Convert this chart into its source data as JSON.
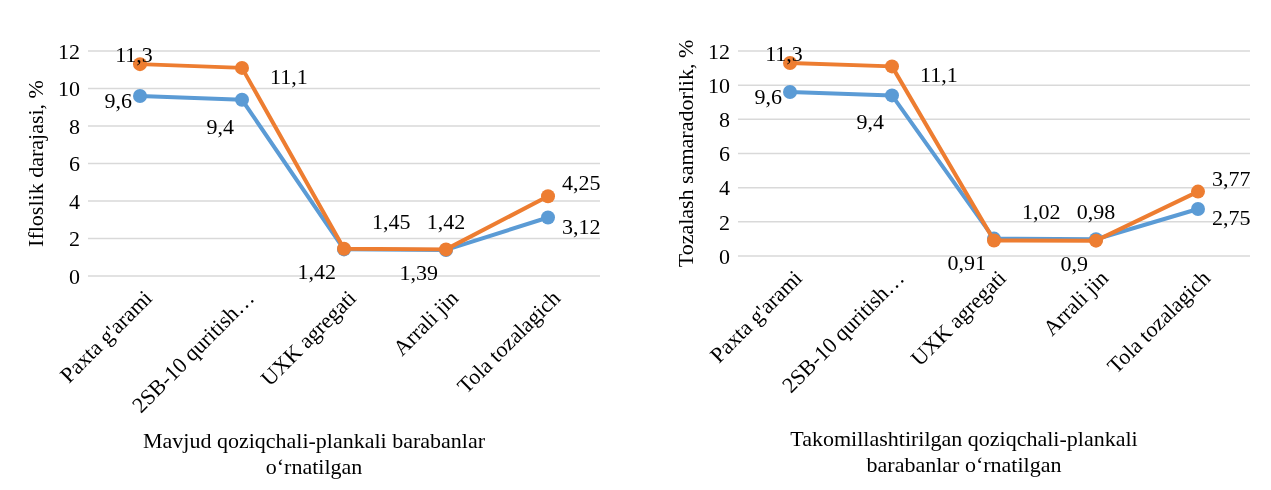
{
  "chart_data": [
    {
      "type": "line",
      "ylabel": "Ifloslik darajasi, %",
      "xlabel": "Mavjud qoziqchali-plankali barabanlar o‘rnatilgan",
      "categories": [
        "Paxta g'arami",
        "2SB-10 quritish…",
        "UXK agregati",
        "Arrali jin",
        "Tola tozalagich"
      ],
      "series": [
        {
          "color": "#5b9bd5",
          "values": [
            9.6,
            9.4,
            1.42,
            1.39,
            3.12
          ],
          "value_labels": [
            "9,6",
            "9,4",
            "1,42",
            "1,39",
            "3,12"
          ]
        },
        {
          "color": "#ed7d31",
          "values": [
            11.3,
            11.1,
            1.45,
            1.42,
            4.25
          ],
          "value_labels": [
            "11,3",
            "11,1",
            "1,45",
            "1,42",
            "4,25"
          ]
        }
      ],
      "ylim": [
        0,
        12
      ],
      "yticks": [
        0,
        2,
        4,
        6,
        8,
        10,
        12
      ],
      "grid": "y",
      "marker": "circle",
      "line_style": "solid"
    },
    {
      "type": "line",
      "ylabel": "Tozalash samaradorlik, %",
      "xlabel": "Takomillashtirilgan qoziqchali-plankali barabanlar o‘rnatilgan",
      "categories": [
        "Paxta g'arami",
        "2SB-10 quritish…",
        "UXK agregati",
        "Arrali jin",
        "Tola tozalagich"
      ],
      "series": [
        {
          "color": "#5b9bd5",
          "values": [
            9.6,
            9.4,
            1.02,
            0.98,
            2.75
          ],
          "value_labels": [
            "9,6",
            "9,4",
            "1,02",
            "0,98",
            "2,75"
          ]
        },
        {
          "color": "#ed7d31",
          "values": [
            11.3,
            11.1,
            0.91,
            0.9,
            3.77
          ],
          "value_labels": [
            "11,3",
            "11,1",
            "0,91",
            "0,9",
            "3,77"
          ]
        }
      ],
      "ylim": [
        0,
        12
      ],
      "yticks": [
        0,
        2,
        4,
        6,
        8,
        10,
        12
      ],
      "grid": "y",
      "marker": "circle",
      "line_style": "solid"
    }
  ]
}
